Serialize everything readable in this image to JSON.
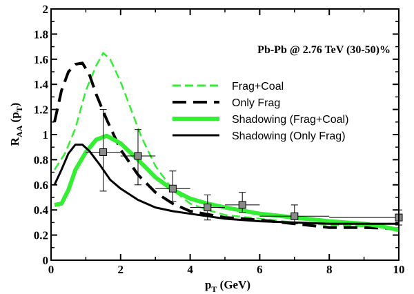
{
  "chart_data": {
    "type": "line",
    "annotation": "Pb-Pb @ 2.76 TeV (30-50)%",
    "xlabel": {
      "main": "p",
      "sub": "T",
      "rest": " (GeV)"
    },
    "ylabel": {
      "main": "R",
      "sub": "AA",
      "mid": " (p",
      "sub2": "T",
      "end": ")"
    },
    "xlim": [
      0,
      10
    ],
    "ylim": [
      0,
      2
    ],
    "xticks": [
      0,
      2,
      4,
      6,
      8,
      10
    ],
    "xtick_labels": [
      "0",
      "2",
      "4",
      "6",
      "8",
      "10"
    ],
    "yticks": [
      0,
      0.2,
      0.4,
      0.6,
      0.8,
      1,
      1.2,
      1.4,
      1.6,
      1.8,
      2
    ],
    "ytick_labels": [
      "0",
      "0.2",
      "0.4",
      "0.6",
      "0.8",
      "1",
      "1.2",
      "1.4",
      "1.6",
      "1.8",
      "2"
    ],
    "legend_position": "right-middle",
    "series": [
      {
        "name": "Frag+Coal",
        "color": "#33ee33",
        "style": "dashed",
        "width": "thin",
        "points": [
          [
            0.1,
            0.72
          ],
          [
            0.4,
            0.85
          ],
          [
            0.7,
            1.05
          ],
          [
            1.0,
            1.35
          ],
          [
            1.3,
            1.55
          ],
          [
            1.5,
            1.65
          ],
          [
            1.7,
            1.6
          ],
          [
            2.0,
            1.42
          ],
          [
            2.3,
            1.2
          ],
          [
            2.6,
            0.98
          ],
          [
            3.0,
            0.75
          ],
          [
            3.5,
            0.56
          ],
          [
            4.0,
            0.45
          ],
          [
            4.5,
            0.4
          ],
          [
            5.0,
            0.36
          ],
          [
            6.0,
            0.33
          ],
          [
            7.0,
            0.3
          ],
          [
            8.0,
            0.28
          ],
          [
            9.0,
            0.27
          ],
          [
            10.0,
            0.25
          ]
        ]
      },
      {
        "name": "Only Frag",
        "color": "#000000",
        "style": "dashed",
        "width": "thick",
        "points": [
          [
            0.1,
            1.1
          ],
          [
            0.3,
            1.35
          ],
          [
            0.5,
            1.5
          ],
          [
            0.7,
            1.56
          ],
          [
            0.9,
            1.57
          ],
          [
            1.1,
            1.48
          ],
          [
            1.3,
            1.32
          ],
          [
            1.6,
            1.12
          ],
          [
            2.0,
            0.88
          ],
          [
            2.5,
            0.68
          ],
          [
            3.0,
            0.54
          ],
          [
            3.5,
            0.45
          ],
          [
            4.0,
            0.39
          ],
          [
            5.0,
            0.34
          ],
          [
            6.0,
            0.32
          ],
          [
            7.0,
            0.29
          ],
          [
            8.0,
            0.26
          ],
          [
            9.0,
            0.26
          ],
          [
            10.0,
            0.25
          ]
        ]
      },
      {
        "name": "Shadowing (Frag+Coal)",
        "color": "#33ee33",
        "style": "solid",
        "width": "thick",
        "points": [
          [
            0.1,
            0.44
          ],
          [
            0.3,
            0.45
          ],
          [
            0.5,
            0.56
          ],
          [
            0.7,
            0.72
          ],
          [
            1.0,
            0.86
          ],
          [
            1.3,
            0.96
          ],
          [
            1.6,
            0.99
          ],
          [
            2.0,
            0.93
          ],
          [
            2.5,
            0.8
          ],
          [
            3.0,
            0.66
          ],
          [
            3.5,
            0.56
          ],
          [
            4.0,
            0.49
          ],
          [
            4.5,
            0.45
          ],
          [
            5.0,
            0.42
          ],
          [
            6.0,
            0.37
          ],
          [
            7.0,
            0.34
          ],
          [
            8.0,
            0.31
          ],
          [
            9.0,
            0.29
          ],
          [
            9.5,
            0.27
          ],
          [
            10.0,
            0.24
          ]
        ]
      },
      {
        "name": "Shadowing (Only Frag)",
        "color": "#000000",
        "style": "solid",
        "width": "medium",
        "points": [
          [
            0.1,
            0.6
          ],
          [
            0.3,
            0.72
          ],
          [
            0.5,
            0.85
          ],
          [
            0.7,
            0.92
          ],
          [
            0.9,
            0.92
          ],
          [
            1.1,
            0.87
          ],
          [
            1.4,
            0.76
          ],
          [
            1.7,
            0.64
          ],
          [
            2.0,
            0.57
          ],
          [
            2.5,
            0.48
          ],
          [
            3.0,
            0.42
          ],
          [
            3.5,
            0.39
          ],
          [
            4.0,
            0.37
          ],
          [
            4.5,
            0.35
          ],
          [
            5.0,
            0.33
          ],
          [
            6.0,
            0.31
          ],
          [
            7.0,
            0.3
          ],
          [
            8.0,
            0.29
          ],
          [
            9.0,
            0.29
          ],
          [
            10.0,
            0.29
          ]
        ]
      }
    ],
    "data_points": [
      {
        "x": 1.5,
        "y": 0.86,
        "xerr": 0.5,
        "yerr_low": 0.31,
        "yerr_high": 0.34
      },
      {
        "x": 2.5,
        "y": 0.83,
        "xerr": 0.5,
        "yerr_low": 0.23,
        "yerr_high": 0.21
      },
      {
        "x": 3.5,
        "y": 0.57,
        "xerr": 0.5,
        "yerr_low": 0.1,
        "yerr_high": 0.14
      },
      {
        "x": 4.5,
        "y": 0.42,
        "xerr": 0.5,
        "yerr_low": 0.1,
        "yerr_high": 0.1
      },
      {
        "x": 5.5,
        "y": 0.44,
        "xerr": 0.5,
        "yerr_low": 0.06,
        "yerr_high": 0.1
      },
      {
        "x": 7.0,
        "y": 0.35,
        "xerr": 1.0,
        "yerr_low": 0.06,
        "yerr_high": 0.09
      },
      {
        "x": 10.0,
        "y": 0.34,
        "xerr": 2.0,
        "yerr_low": 0.06,
        "yerr_high": 0.06
      }
    ],
    "marker_color": "#8a8a8a"
  }
}
